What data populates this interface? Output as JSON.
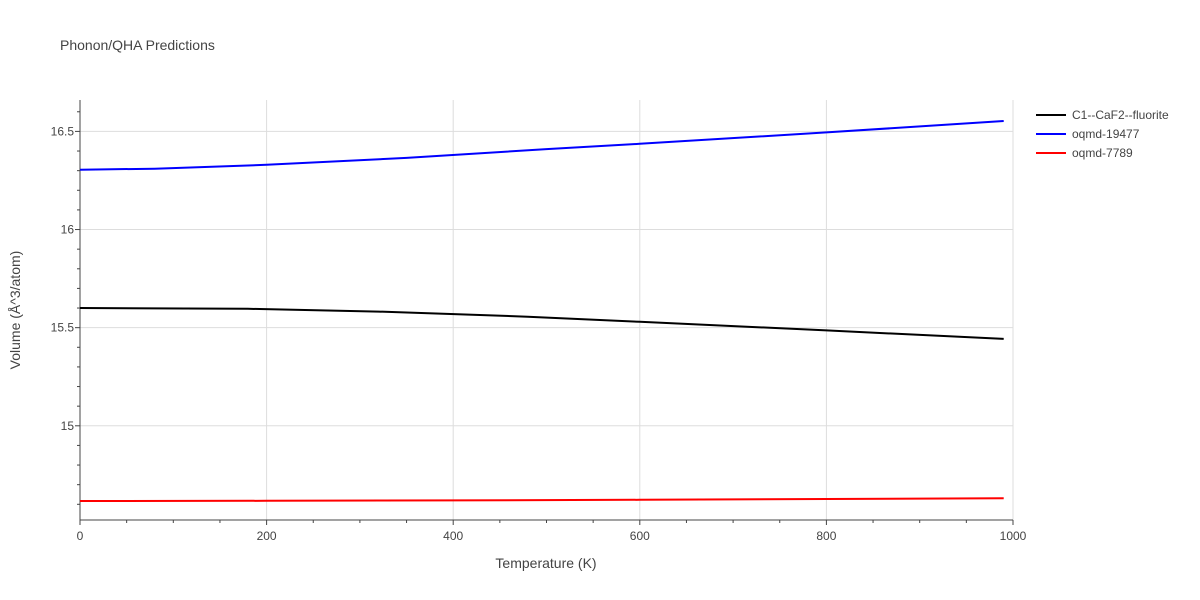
{
  "chart_data": {
    "type": "line",
    "title": "Phonon/QHA Predictions",
    "xlabel": "Temperature (K)",
    "ylabel": "Volume (Å^3/atom)",
    "xlim": [
      0,
      1000
    ],
    "ylim": [
      14.52,
      16.66
    ],
    "x_ticks": [
      0,
      200,
      400,
      600,
      800,
      1000
    ],
    "x_tick_labels": [
      "0",
      "200",
      "400",
      "600",
      "800",
      "1000"
    ],
    "y_ticks": [
      15,
      15.5,
      16,
      16.5
    ],
    "y_tick_labels": [
      "15",
      "15.5",
      "16",
      "16.5"
    ],
    "grid": true,
    "legend_position": "top-right",
    "series": [
      {
        "name": "C1--CaF2--fluorite",
        "color": "#000000",
        "x": [
          0,
          80,
          180,
          320,
          480,
          600,
          800,
          990
        ],
        "y": [
          15.6,
          15.598,
          15.596,
          15.582,
          15.556,
          15.53,
          15.486,
          15.443
        ]
      },
      {
        "name": "oqmd-19477",
        "color": "#0000ff",
        "x": [
          0,
          80,
          200,
          350,
          500,
          600,
          800,
          990
        ],
        "y": [
          16.305,
          16.31,
          16.33,
          16.365,
          16.41,
          16.437,
          16.495,
          16.553
        ]
      },
      {
        "name": "oqmd-7789",
        "color": "#ff0000",
        "x": [
          0,
          200,
          400,
          600,
          800,
          990
        ],
        "y": [
          14.617,
          14.618,
          14.62,
          14.623,
          14.627,
          14.631
        ]
      }
    ]
  }
}
